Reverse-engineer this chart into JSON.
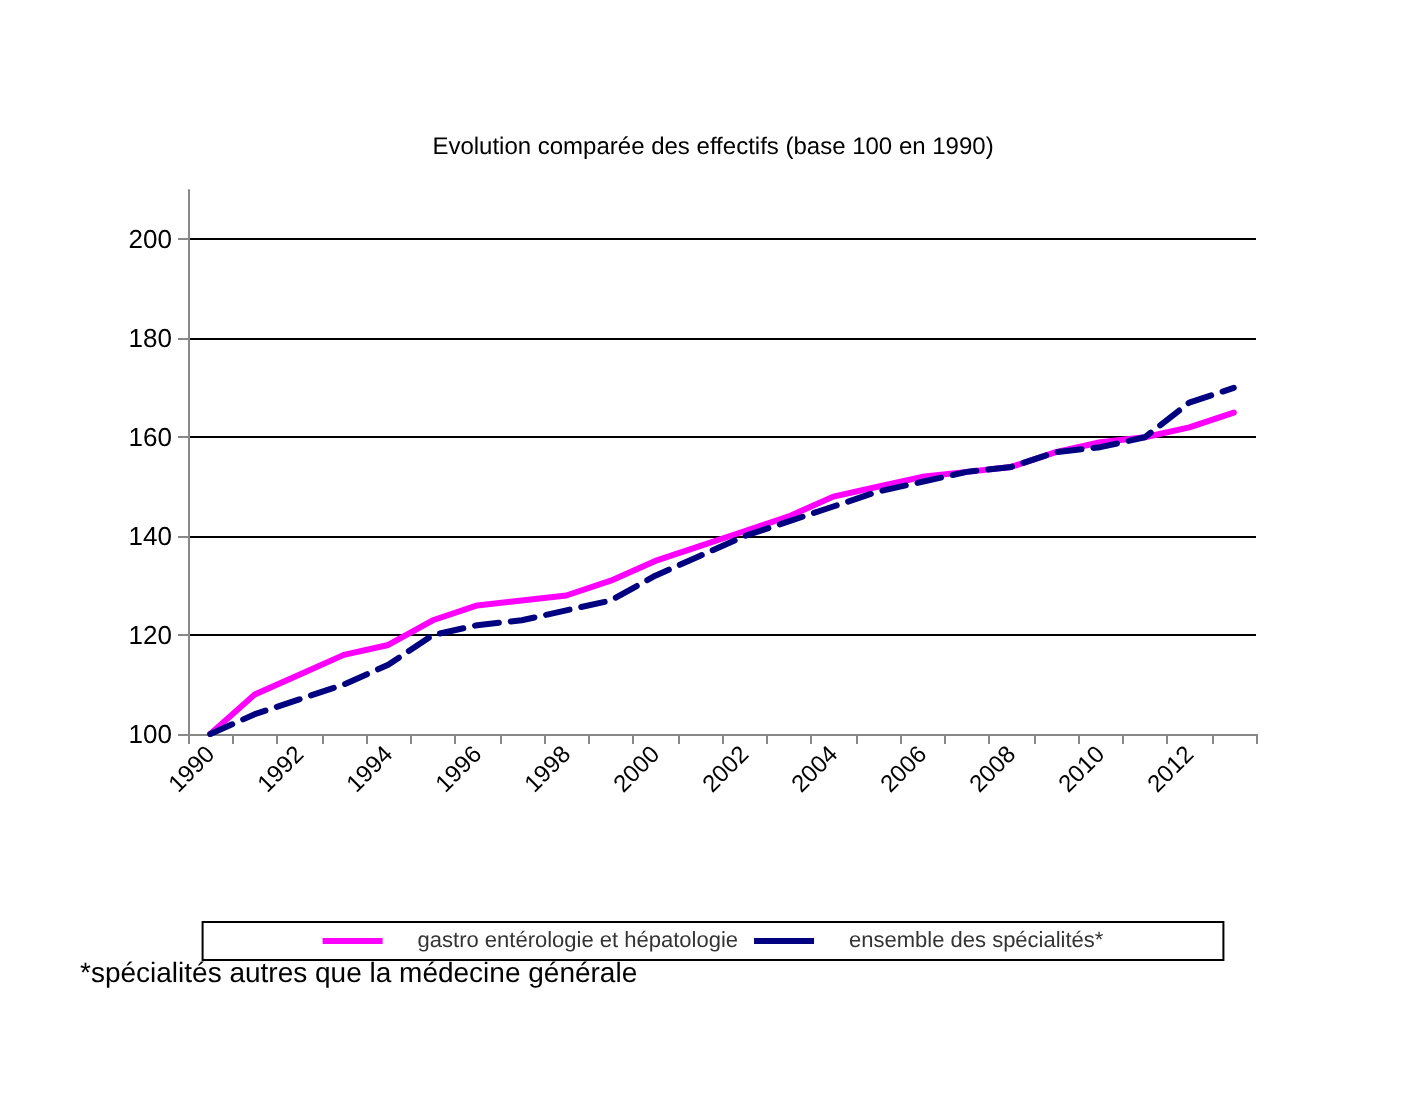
{
  "chart_data": {
    "type": "line",
    "title": "Evolution comparée des effectifs (base 100 en 1990)",
    "categories": [
      "1990",
      null,
      "1992",
      null,
      "1994",
      null,
      "1996",
      null,
      "1998",
      null,
      "2000",
      null,
      "2002",
      null,
      "2004",
      null,
      "2006",
      null,
      "2008",
      null,
      "2010",
      null,
      "2012",
      null
    ],
    "series": [
      {
        "name": "gastro entérologie et hépatologie",
        "color": "#ff00ff",
        "line_style": "solid",
        "values": [
          100,
          108,
          112,
          116,
          118,
          123,
          126,
          127,
          128,
          131,
          135,
          138,
          141,
          144,
          148,
          150,
          152,
          153,
          154,
          157,
          159,
          160,
          162,
          165
        ]
      },
      {
        "name": "ensemble des spécialités*",
        "color": "#000080",
        "line_style": "dashed",
        "values": [
          100,
          104,
          107,
          110,
          114,
          120,
          122,
          123,
          125,
          127,
          132,
          136,
          140,
          143,
          146,
          149,
          151,
          153,
          154,
          157,
          158,
          160,
          167,
          170
        ]
      }
    ],
    "ylim": [
      100,
      210
    ],
    "yticks": [
      100,
      120,
      140,
      160,
      180,
      200
    ],
    "grid": "y",
    "legend": "bottom",
    "marker": "none",
    "annotations": [
      "*spécialités autres que la médecine générale"
    ]
  }
}
